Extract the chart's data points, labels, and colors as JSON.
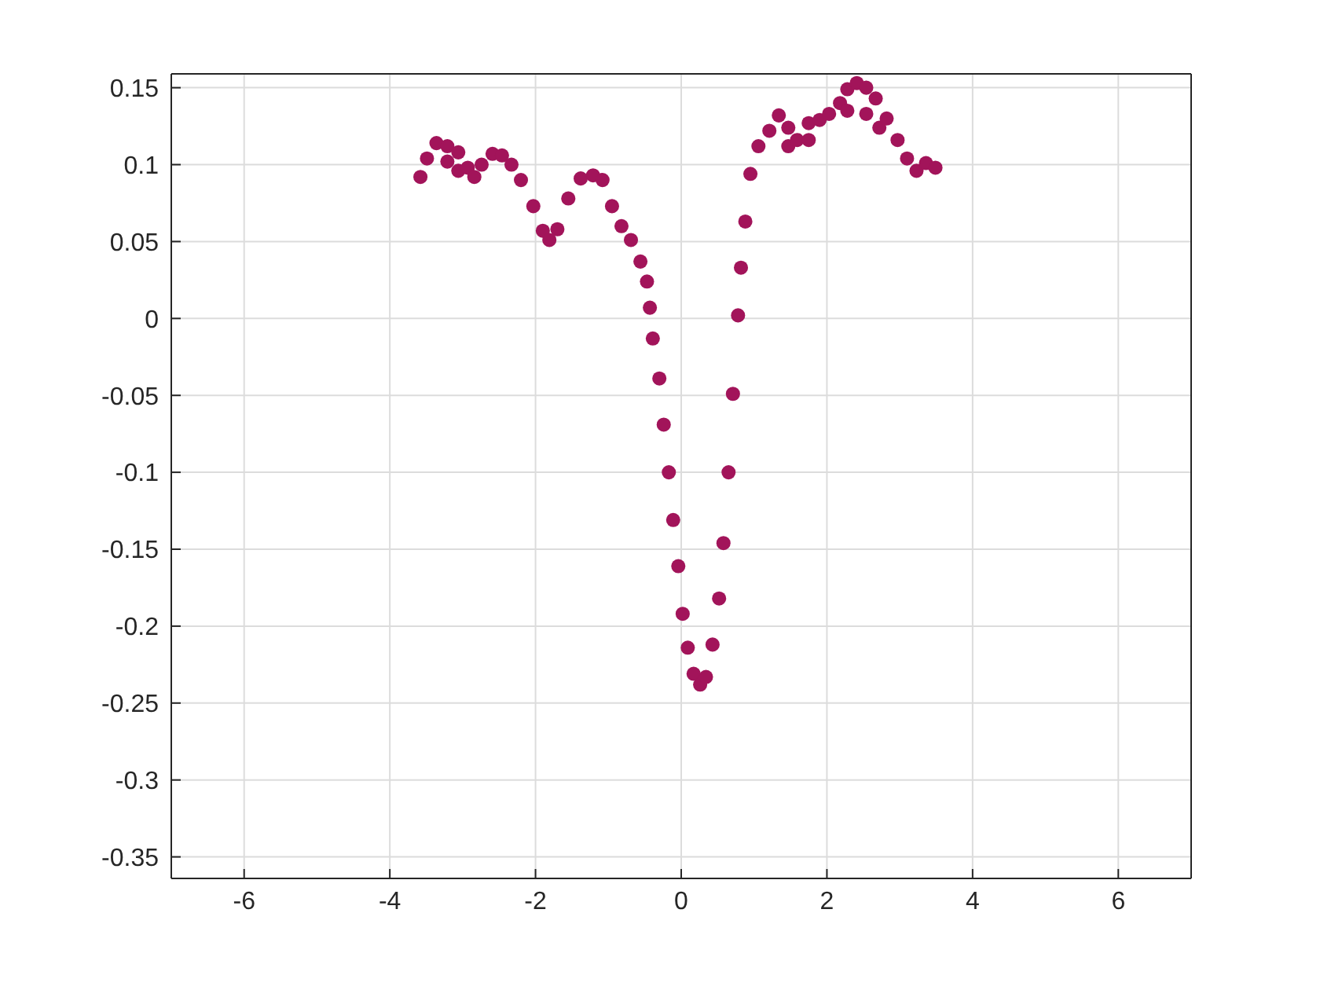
{
  "chart_data": {
    "type": "scatter",
    "xlim": [
      -7,
      7
    ],
    "xticks": [
      -6,
      -4,
      -2,
      0,
      2,
      4,
      6
    ],
    "ylim": [
      -0.364,
      0.159
    ],
    "yticks": [
      -0.35,
      -0.3,
      -0.25,
      -0.2,
      -0.15,
      -0.1,
      -0.05,
      0,
      0.05,
      0.1,
      0.15
    ],
    "grid": true,
    "marker": "circle",
    "series": [
      {
        "color": "#a2145a",
        "x": [
          -3.58,
          -3.49,
          -3.36,
          -3.21,
          -3.21,
          -3.06,
          -3.06,
          -2.93,
          -2.84,
          -2.74,
          -2.59,
          -2.46,
          -2.33,
          -2.2,
          -2.03,
          -1.9,
          -1.81,
          -1.7,
          -1.55,
          -1.38,
          -1.21,
          -1.08,
          -0.95,
          -0.82,
          -0.69,
          -0.56,
          -0.47,
          -0.43,
          -0.39,
          -0.3,
          -0.24,
          -0.17,
          -0.11,
          -0.04,
          0.02,
          0.09,
          0.17,
          0.26,
          0.34,
          0.43,
          0.52,
          0.58,
          0.65,
          0.71,
          0.78,
          0.82,
          0.88,
          0.95,
          1.06,
          1.21,
          1.34,
          1.47,
          1.47,
          1.59,
          1.75,
          1.75,
          1.9,
          2.03,
          2.18,
          2.28,
          2.28,
          2.41,
          2.54,
          2.54,
          2.67,
          2.72,
          2.82,
          2.97,
          3.1,
          3.23,
          3.36,
          3.49
        ],
        "values": [
          0.092,
          0.104,
          0.114,
          0.112,
          0.102,
          0.108,
          0.096,
          0.098,
          0.092,
          0.1,
          0.107,
          0.106,
          0.1,
          0.09,
          0.073,
          0.057,
          0.051,
          0.058,
          0.078,
          0.091,
          0.093,
          0.09,
          0.073,
          0.06,
          0.051,
          0.037,
          0.024,
          0.007,
          -0.013,
          -0.039,
          -0.069,
          -0.1,
          -0.131,
          -0.161,
          -0.192,
          -0.214,
          -0.231,
          -0.238,
          -0.233,
          -0.212,
          -0.182,
          -0.146,
          -0.1,
          -0.049,
          0.002,
          0.033,
          0.063,
          0.094,
          0.112,
          0.122,
          0.132,
          0.124,
          0.112,
          0.116,
          0.127,
          0.116,
          0.129,
          0.133,
          0.14,
          0.149,
          0.135,
          0.153,
          0.15,
          0.133,
          0.143,
          0.124,
          0.13,
          0.116,
          0.104,
          0.096,
          0.101,
          0.098
        ]
      }
    ]
  }
}
